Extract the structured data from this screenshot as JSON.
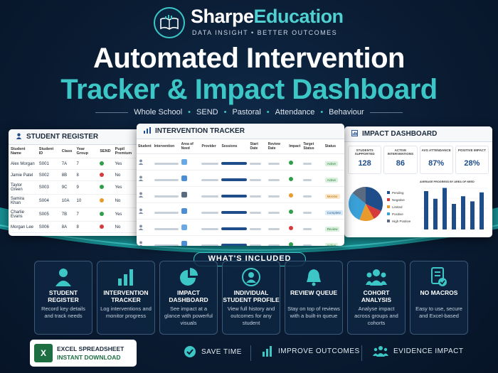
{
  "brand": {
    "name_part1": "Sharpe",
    "name_part2": "Education",
    "tagline": "DATA INSIGHT • BETTER OUTCOMES"
  },
  "title": {
    "line1": "Automated Intervention",
    "line2": "Tracker & Impact Dashboard"
  },
  "categories": [
    "Whole School",
    "SEND",
    "Pastoral",
    "Attendance",
    "Behaviour"
  ],
  "register": {
    "title": "STUDENT REGISTER",
    "headers": [
      "Student Name",
      "Student ID",
      "Class",
      "Year Group",
      "SEND",
      "Pupil Premium"
    ],
    "rows": [
      {
        "name": "Alex Morgan",
        "id": "S001",
        "class": "7A",
        "year": "7",
        "send": "#2e9e4a",
        "pp": "Yes"
      },
      {
        "name": "Jamie Patel",
        "id": "S002",
        "class": "8B",
        "year": "8",
        "send": "#d63b3b",
        "pp": "No"
      },
      {
        "name": "Taylor Green",
        "id": "S003",
        "class": "9C",
        "year": "9",
        "send": "#2e9e4a",
        "pp": "Yes"
      },
      {
        "name": "Samira Khan",
        "id": "S004",
        "class": "10A",
        "year": "10",
        "send": "#e89a2c",
        "pp": "No"
      },
      {
        "name": "Charlie Evans",
        "id": "S005",
        "class": "7B",
        "year": "7",
        "send": "#2e9e4a",
        "pp": "Yes"
      },
      {
        "name": "Morgan Lee",
        "id": "S006",
        "class": "8A",
        "year": "8",
        "send": "#d63b3b",
        "pp": "No"
      }
    ]
  },
  "tracker": {
    "title": "INTERVENTION TRACKER",
    "headers": [
      "Student",
      "Intervention",
      "Area of Need",
      "Provider",
      "Sessions",
      "Start Date",
      "Review Date",
      "Impact",
      "Target Status",
      "Status"
    ],
    "rows": [
      {
        "impact": "#2e9e4a",
        "status": "Active",
        "sbg": "#d8f0dc",
        "sfg": "#2e7d3e",
        "tcolor": "#6aa9e6"
      },
      {
        "impact": "#2e9e4a",
        "status": "Active",
        "sbg": "#d8f0dc",
        "sfg": "#2e7d3e",
        "tcolor": "#4a8fd6"
      },
      {
        "impact": "#e89a2c",
        "status": "Monitor",
        "sbg": "#fbe7c7",
        "sfg": "#b0700e",
        "tcolor": "#5a6a80"
      },
      {
        "impact": "#2e9e4a",
        "status": "Complete",
        "sbg": "#d8eaf8",
        "sfg": "#2a5e90",
        "tcolor": "#4a8fd6"
      },
      {
        "impact": "#d63b3b",
        "status": "Review",
        "sbg": "#d8f0dc",
        "sfg": "#2e7d3e",
        "tcolor": "#6aa9e6"
      },
      {
        "impact": "#2e9e4a",
        "status": "Active",
        "sbg": "#d8f0dc",
        "sfg": "#2e7d3e",
        "tcolor": "#4a8fd6"
      },
      {
        "impact": "#2e9e4a",
        "status": "Active",
        "sbg": "#d8f0dc",
        "sfg": "#2e7d3e",
        "tcolor": "#5a6a80"
      }
    ]
  },
  "impact": {
    "title": "IMPACT DASHBOARD",
    "stats": [
      {
        "label": "STUDENTS SUPPORTED",
        "value": "128"
      },
      {
        "label": "ACTIVE INTERVENTIONS",
        "value": "86"
      },
      {
        "label": "AVG ATTENDANCE",
        "value": "87%"
      },
      {
        "label": "POSITIVE IMPACT",
        "value": "28%"
      }
    ],
    "legend": [
      "Pending",
      "Negative",
      "Limited",
      "Positive",
      "High Positive"
    ],
    "legend_colors": [
      "#1f4d8a",
      "#d63b3b",
      "#e89a2c",
      "#3aa0d8",
      "#5a6a80"
    ],
    "pie_values": [
      32,
      10,
      14,
      30,
      14
    ],
    "bar_title": "AVERAGE PROGRESS BY AREA OF NEED",
    "bar_values": [
      60,
      48,
      65,
      40,
      52,
      44,
      58
    ]
  },
  "included_label": "WHAT'S INCLUDED",
  "features": [
    {
      "title": "STUDENT REGISTER",
      "desc": "Record key details and track needs",
      "icon": "person-icon"
    },
    {
      "title": "INTERVENTION TRACKER",
      "desc": "Log interventions and monitor progress",
      "icon": "bar-chart-icon"
    },
    {
      "title": "IMPACT DASHBOARD",
      "desc": "See impact at a glance with powerful visuals",
      "icon": "pie-chart-icon"
    },
    {
      "title": "INDIVIDUAL STUDENT PROFILE",
      "desc": "View full history and outcomes for any student",
      "icon": "profile-icon"
    },
    {
      "title": "REVIEW QUEUE",
      "desc": "Stay on top of reviews with a built-in queue",
      "icon": "bell-icon"
    },
    {
      "title": "COHORT ANALYSIS",
      "desc": "Analyse impact across groups and cohorts",
      "icon": "group-icon"
    },
    {
      "title": "NO MACROS",
      "desc": "Easy to use, secure and Excel-based",
      "icon": "document-check-icon"
    }
  ],
  "excel": {
    "line1": "EXCEL SPREADSHEET",
    "line2": "INSTANT DOWNLOAD",
    "icon_letter": "X"
  },
  "benefits": [
    "SAVE TIME",
    "IMPROVE OUTCOMES",
    "EVIDENCE IMPACT"
  ]
}
